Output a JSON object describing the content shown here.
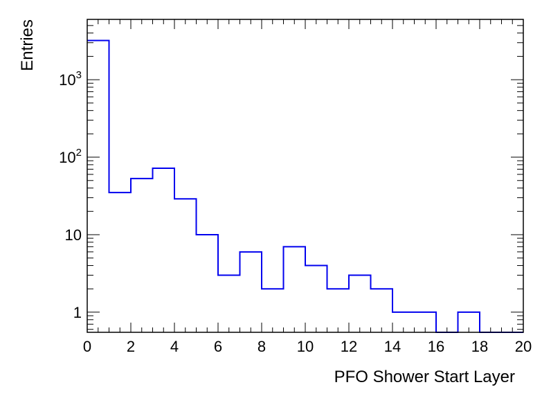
{
  "chart_data": {
    "type": "histogram",
    "xlabel": "PFO Shower Start Layer",
    "ylabel": "Entries",
    "xlim": [
      0,
      20
    ],
    "ylim": [
      0.55,
      6000
    ],
    "y_scale": "log",
    "bin_edges": [
      0,
      1,
      2,
      3,
      4,
      5,
      6,
      7,
      8,
      9,
      10,
      11,
      12,
      13,
      14,
      15,
      16,
      17,
      18,
      19,
      20
    ],
    "values": [
      3200,
      35,
      53,
      72,
      29,
      10,
      3,
      6,
      2,
      7,
      4,
      2,
      3,
      2,
      1,
      1,
      0,
      1,
      0,
      0
    ],
    "x_ticks": [
      "0",
      "2",
      "4",
      "6",
      "8",
      "10",
      "12",
      "14",
      "16",
      "18",
      "20"
    ],
    "x_tick_values": [
      0,
      2,
      4,
      6,
      8,
      10,
      12,
      14,
      16,
      18,
      20
    ],
    "y_ticks": [
      {
        "value": 1,
        "base": "1",
        "exp": ""
      },
      {
        "value": 10,
        "base": "10",
        "exp": ""
      },
      {
        "value": 100,
        "base": "10",
        "exp": "2"
      },
      {
        "value": 1000,
        "base": "10",
        "exp": "3"
      }
    ],
    "line_color": "#0000ee",
    "grid": false,
    "legend": "none"
  }
}
